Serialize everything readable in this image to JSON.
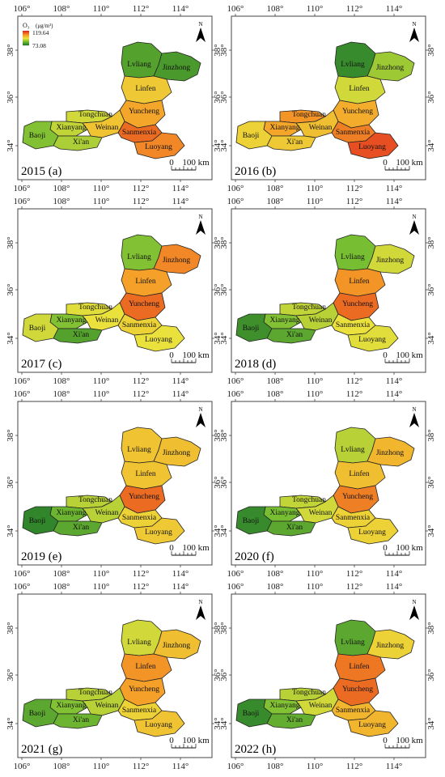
{
  "legend": {
    "pollutant": "O₃",
    "unit": "(μg/m³)",
    "max": "119.64",
    "min": "73.08"
  },
  "scale_bar": {
    "zero": "0",
    "length": "100 km"
  },
  "north_label": "N",
  "x_ticks": [
    "106°",
    "108°",
    "110°",
    "112°",
    "114°"
  ],
  "y_ticks": [
    "38°",
    "36°",
    "34°"
  ],
  "cities": [
    "Lvliang",
    "Jinzhong",
    "Linfen",
    "Tongchuan",
    "Yuncheng",
    "Xianyang",
    "Weinan",
    "Baoji",
    "Sanmenxia",
    "Xi'an",
    "Luoyang"
  ],
  "panels": [
    {
      "label": "2015 (a)",
      "levels": {
        "Lvliang": 0.18,
        "Jinzhong": 0.15,
        "Linfen": 0.58,
        "Tongchuan": 0.45,
        "Yuncheng": 0.7,
        "Xianyang": 0.42,
        "Weinan": 0.6,
        "Baoji": 0.3,
        "Sanmenxia": 0.85,
        "Xi'an": 0.38,
        "Luoyang": 0.78
      }
    },
    {
      "label": "2016 (b)",
      "levels": {
        "Lvliang": 0.1,
        "Jinzhong": 0.35,
        "Linfen": 0.45,
        "Tongchuan": 0.75,
        "Yuncheng": 0.68,
        "Xianyang": 0.7,
        "Weinan": 0.62,
        "Baoji": 0.55,
        "Sanmenxia": 0.8,
        "Xi'an": 0.58,
        "Luoyang": 0.92
      }
    },
    {
      "label": "2017 (c)",
      "levels": {
        "Lvliang": 0.3,
        "Jinzhong": 0.78,
        "Linfen": 0.72,
        "Tongchuan": 0.48,
        "Yuncheng": 0.85,
        "Xianyang": 0.3,
        "Weinan": 0.5,
        "Baoji": 0.45,
        "Sanmenxia": 0.55,
        "Xi'an": 0.18,
        "Luoyang": 0.5
      }
    },
    {
      "label": "2018 (d)",
      "levels": {
        "Lvliang": 0.28,
        "Jinzhong": 0.45,
        "Linfen": 0.75,
        "Tongchuan": 0.42,
        "Yuncheng": 0.85,
        "Xianyang": 0.3,
        "Weinan": 0.4,
        "Baoji": 0.12,
        "Sanmenxia": 0.5,
        "Xi'an": 0.2,
        "Luoyang": 0.48
      }
    },
    {
      "label": "2019 (e)",
      "levels": {
        "Lvliang": 0.6,
        "Jinzhong": 0.62,
        "Linfen": 0.6,
        "Tongchuan": 0.4,
        "Yuncheng": 0.85,
        "Xianyang": 0.25,
        "Weinan": 0.4,
        "Baoji": 0.08,
        "Sanmenxia": 0.55,
        "Xi'an": 0.2,
        "Luoyang": 0.58
      }
    },
    {
      "label": "2020 (f)",
      "levels": {
        "Lvliang": 0.4,
        "Jinzhong": 0.65,
        "Linfen": 0.62,
        "Tongchuan": 0.42,
        "Yuncheng": 0.8,
        "Xianyang": 0.28,
        "Weinan": 0.45,
        "Baoji": 0.1,
        "Sanmenxia": 0.55,
        "Xi'an": 0.2,
        "Luoyang": 0.55
      }
    },
    {
      "label": "2021 (g)",
      "levels": {
        "Lvliang": 0.45,
        "Jinzhong": 0.62,
        "Linfen": 0.75,
        "Tongchuan": 0.4,
        "Yuncheng": 0.72,
        "Xianyang": 0.3,
        "Weinan": 0.4,
        "Baoji": 0.2,
        "Sanmenxia": 0.55,
        "Xi'an": 0.25,
        "Luoyang": 0.6
      }
    },
    {
      "label": "2022 (h)",
      "levels": {
        "Lvliang": 0.2,
        "Jinzhong": 0.55,
        "Linfen": 0.82,
        "Tongchuan": 0.4,
        "Yuncheng": 0.85,
        "Xianyang": 0.3,
        "Weinan": 0.45,
        "Baoji": 0.1,
        "Sanmenxia": 0.65,
        "Xi'an": 0.22,
        "Luoyang": 0.65
      }
    }
  ]
}
